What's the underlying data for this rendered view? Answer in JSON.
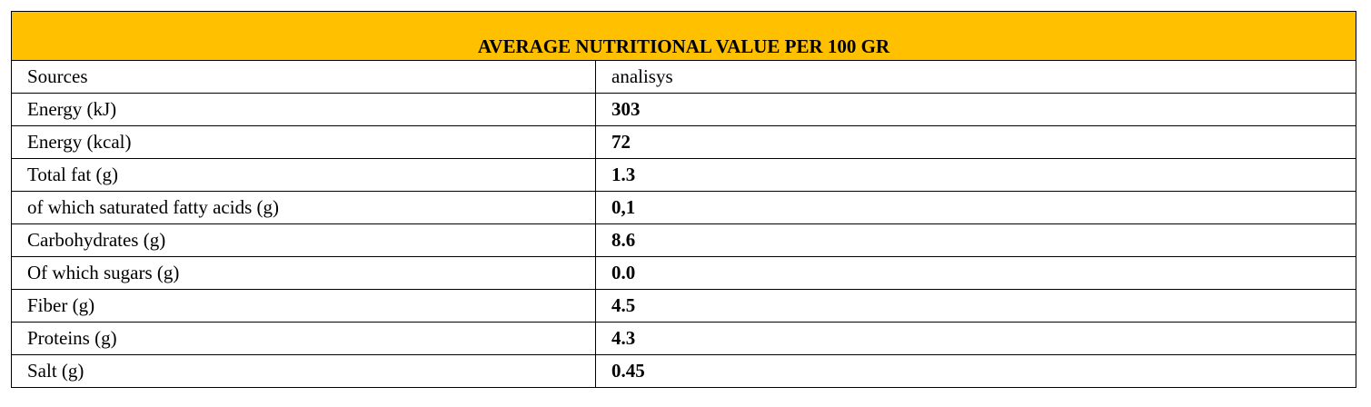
{
  "table": {
    "title": "AVERAGE NUTRITIONAL VALUE PER 100 GR",
    "header_color": "#ffc000",
    "rows": [
      {
        "label": "Sources",
        "value": "analisys"
      },
      {
        "label": "Energy  (kJ)",
        "value": "303"
      },
      {
        "label": "Energy  (kcal)",
        "value": "72"
      },
      {
        "label": "Total fat (g)",
        "value": "1.3"
      },
      {
        "label": "of which saturated fatty acids (g)",
        "value": "0,1"
      },
      {
        "label": "Carbohydrates (g)",
        "value": "8.6"
      },
      {
        "label": "Of which sugars (g)",
        "value": "0.0"
      },
      {
        "label": "Fiber (g)",
        "value": "4.5"
      },
      {
        "label": "Proteins (g)",
        "value": "4.3"
      },
      {
        "label": "Salt (g)",
        "value": "0.45"
      }
    ]
  }
}
